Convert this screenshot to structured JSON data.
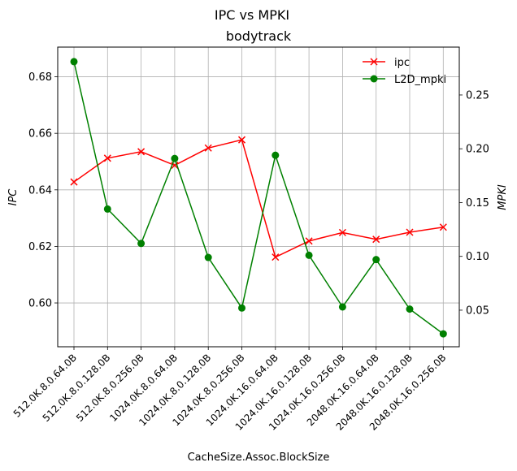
{
  "chart_data": {
    "type": "line",
    "suptitle": "IPC vs MPKI",
    "title": "bodytrack",
    "xlabel": "CacheSize.Assoc.BlockSize",
    "ylabel_left": "IPC",
    "ylabel_right": "MPKI",
    "categories": [
      "512.0K.8.0.64.0B",
      "512.0K.8.0.128.0B",
      "512.0K.8.0.256.0B",
      "1024.0K.8.0.64.0B",
      "1024.0K.8.0.128.0B",
      "1024.0K.8.0.256.0B",
      "1024.0K.16.0.64.0B",
      "1024.0K.16.0.128.0B",
      "1024.0K.16.0.256.0B",
      "2048.0K.16.0.64.0B",
      "2048.0K.16.0.128.0B",
      "2048.0K.16.0.256.0B"
    ],
    "series": [
      {
        "name": "ipc",
        "axis": "left",
        "color": "#ff0000",
        "marker": "x",
        "values": [
          0.6428,
          0.6512,
          0.6535,
          0.6487,
          0.6548,
          0.6577,
          0.6162,
          0.6219,
          0.6249,
          0.6225,
          0.625,
          0.6268
        ]
      },
      {
        "name": "L2D_mpki",
        "axis": "right",
        "color": "#008000",
        "marker": "o",
        "values": [
          0.281,
          0.144,
          0.112,
          0.191,
          0.099,
          0.052,
          0.194,
          0.101,
          0.053,
          0.097,
          0.051,
          0.028
        ]
      }
    ],
    "y_left": {
      "range": [
        0.5845,
        0.6905
      ],
      "ticks": [
        0.6,
        0.62,
        0.64,
        0.66,
        0.68
      ],
      "tick_labels": [
        "0.60",
        "0.62",
        "0.64",
        "0.66",
        "0.68"
      ]
    },
    "y_right": {
      "range": [
        0.016,
        0.2945
      ],
      "ticks": [
        0.05,
        0.1,
        0.15,
        0.2,
        0.25
      ],
      "tick_labels": [
        "0.05",
        "0.10",
        "0.15",
        "0.20",
        "0.25"
      ]
    },
    "grid": true,
    "legend_position": "top-right"
  }
}
